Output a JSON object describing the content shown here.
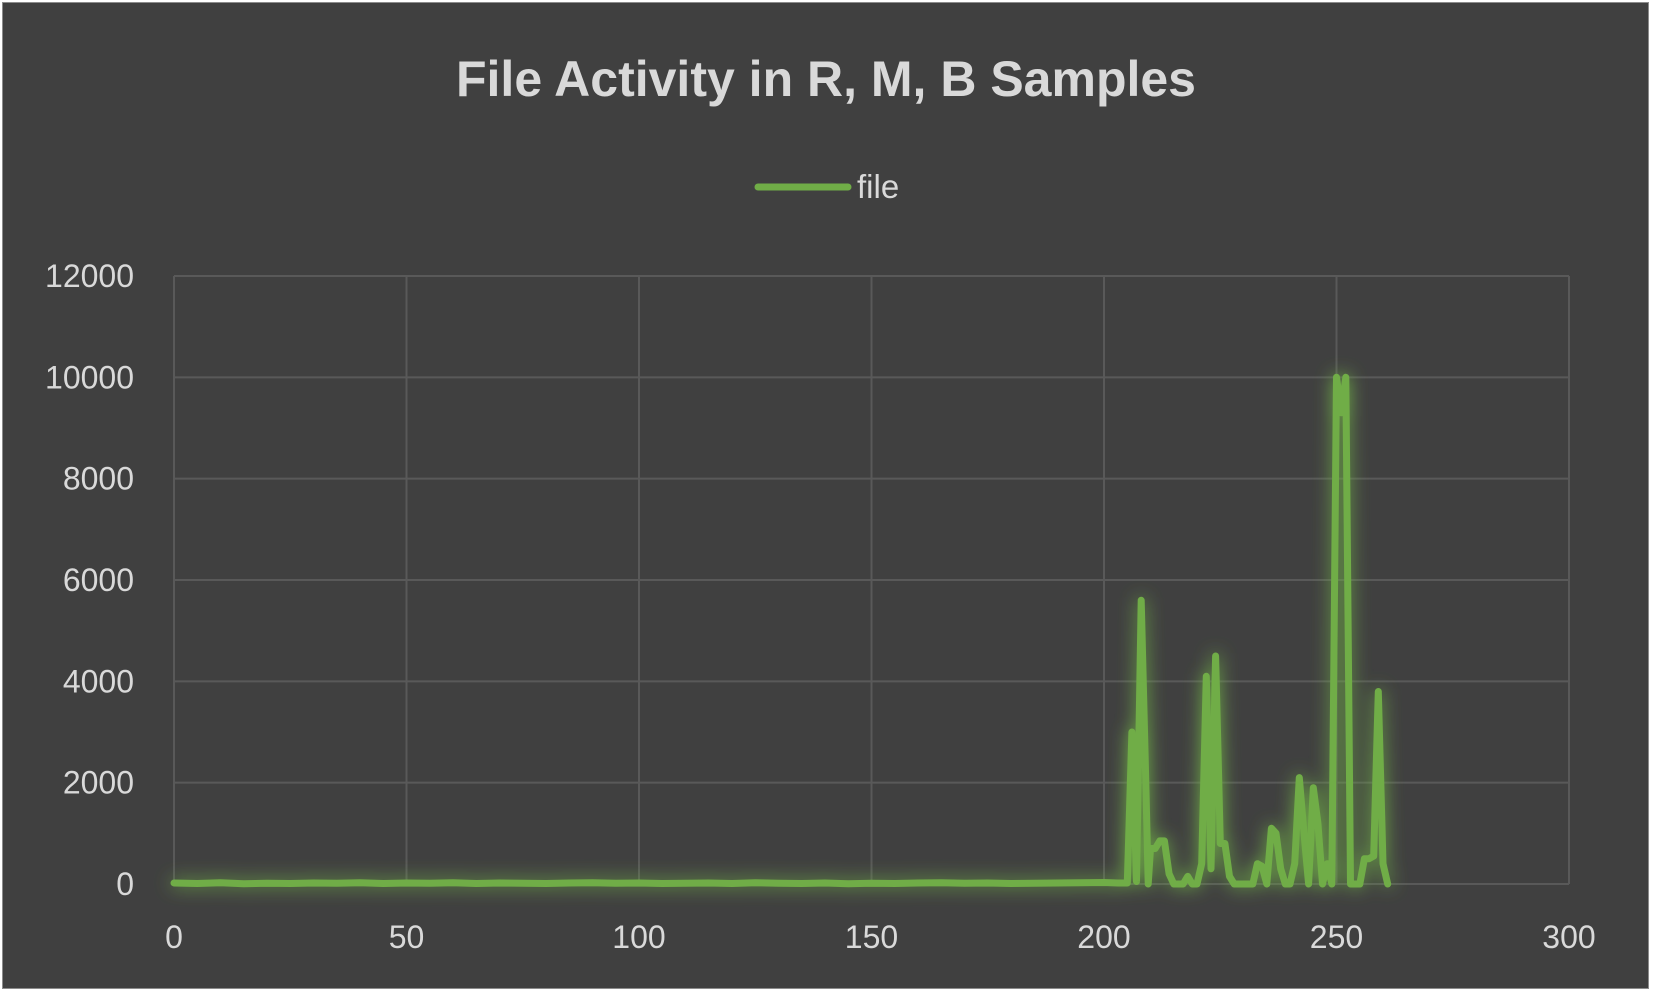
{
  "chart_data": {
    "type": "line",
    "title": "File Activity in R, M, B Samples",
    "xlabel": "",
    "ylabel": "",
    "xlim": [
      0,
      300
    ],
    "ylim": [
      0,
      12000
    ],
    "x_ticks": [
      0,
      50,
      100,
      150,
      200,
      250,
      300
    ],
    "y_ticks": [
      0,
      2000,
      4000,
      6000,
      8000,
      10000,
      12000
    ],
    "grid": true,
    "legend_position": "top-center",
    "series": [
      {
        "name": "file",
        "color": "#70ad47",
        "points": [
          [
            0,
            20
          ],
          [
            5,
            10
          ],
          [
            10,
            25
          ],
          [
            15,
            5
          ],
          [
            20,
            15
          ],
          [
            25,
            10
          ],
          [
            30,
            20
          ],
          [
            35,
            15
          ],
          [
            40,
            25
          ],
          [
            45,
            10
          ],
          [
            50,
            20
          ],
          [
            55,
            15
          ],
          [
            60,
            25
          ],
          [
            65,
            10
          ],
          [
            70,
            20
          ],
          [
            75,
            15
          ],
          [
            80,
            10
          ],
          [
            85,
            20
          ],
          [
            90,
            25
          ],
          [
            95,
            15
          ],
          [
            100,
            20
          ],
          [
            105,
            10
          ],
          [
            110,
            15
          ],
          [
            115,
            20
          ],
          [
            120,
            10
          ],
          [
            125,
            25
          ],
          [
            130,
            15
          ],
          [
            135,
            10
          ],
          [
            140,
            20
          ],
          [
            145,
            5
          ],
          [
            150,
            15
          ],
          [
            155,
            10
          ],
          [
            160,
            20
          ],
          [
            165,
            25
          ],
          [
            170,
            15
          ],
          [
            175,
            20
          ],
          [
            180,
            10
          ],
          [
            185,
            15
          ],
          [
            190,
            20
          ],
          [
            195,
            25
          ],
          [
            200,
            30
          ],
          [
            203,
            20
          ],
          [
            205,
            20
          ],
          [
            206,
            3000
          ],
          [
            207,
            50
          ],
          [
            208,
            5600
          ],
          [
            209,
            2000
          ],
          [
            209.5,
            0
          ],
          [
            210,
            700
          ],
          [
            211,
            700
          ],
          [
            212,
            850
          ],
          [
            213,
            850
          ],
          [
            214,
            200
          ],
          [
            215,
            0
          ],
          [
            217,
            0
          ],
          [
            218,
            150
          ],
          [
            219,
            0
          ],
          [
            220,
            0
          ],
          [
            221,
            400
          ],
          [
            222,
            4100
          ],
          [
            223,
            300
          ],
          [
            224,
            4500
          ],
          [
            225,
            800
          ],
          [
            226,
            800
          ],
          [
            227,
            150
          ],
          [
            228,
            0
          ],
          [
            230,
            0
          ],
          [
            232,
            0
          ],
          [
            233,
            400
          ],
          [
            234,
            350
          ],
          [
            235,
            0
          ],
          [
            236,
            1100
          ],
          [
            237,
            1000
          ],
          [
            238,
            300
          ],
          [
            239,
            0
          ],
          [
            240,
            0
          ],
          [
            241,
            400
          ],
          [
            242,
            2100
          ],
          [
            243,
            1000
          ],
          [
            244,
            0
          ],
          [
            245,
            1900
          ],
          [
            246,
            1200
          ],
          [
            247,
            0
          ],
          [
            248,
            400
          ],
          [
            249,
            0
          ],
          [
            250,
            10000
          ],
          [
            251,
            9300
          ],
          [
            252,
            10000
          ],
          [
            253,
            0
          ],
          [
            255,
            0
          ],
          [
            256,
            500
          ],
          [
            257,
            500
          ],
          [
            258,
            550
          ],
          [
            259,
            3800
          ],
          [
            260,
            400
          ],
          [
            261,
            0
          ]
        ]
      }
    ]
  }
}
